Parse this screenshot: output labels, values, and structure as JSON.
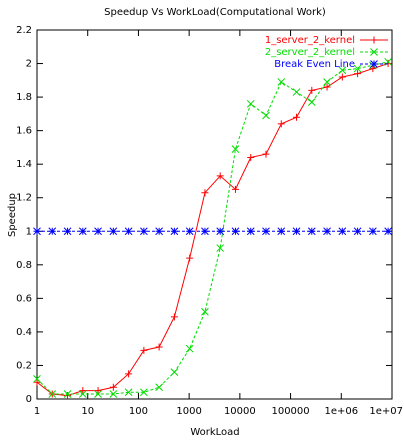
{
  "chart_data": {
    "type": "line",
    "title": "Speedup Vs WorkLoad(Computational Work)",
    "xlabel": "WorkLoad",
    "ylabel": "Speedup",
    "xscale": "log",
    "x": [
      1,
      2,
      4,
      8,
      16,
      32,
      64,
      128,
      256,
      512,
      1024,
      2048,
      4096,
      8192,
      16384,
      32768,
      65536,
      131072,
      262144,
      524288,
      1048576,
      2097152,
      4194304,
      8388608
    ],
    "series": [
      {
        "name": "1_server_2_kernel",
        "color": "#ff0000",
        "marker": "plus",
        "values": [
          0.1,
          0.03,
          0.02,
          0.05,
          0.05,
          0.07,
          0.15,
          0.29,
          0.31,
          0.49,
          0.84,
          1.23,
          1.33,
          1.25,
          1.44,
          1.46,
          1.64,
          1.68,
          1.84,
          1.86,
          1.92,
          1.94,
          1.97,
          2.0
        ]
      },
      {
        "name": "2_server_2_kernel",
        "color": "#00dd00",
        "marker": "cross",
        "dashed": true,
        "values": [
          0.12,
          0.03,
          0.03,
          0.03,
          0.03,
          0.03,
          0.04,
          0.04,
          0.07,
          0.16,
          0.3,
          0.52,
          0.9,
          1.49,
          1.76,
          1.69,
          1.89,
          1.83,
          1.77,
          1.89,
          1.96,
          1.97,
          1.99,
          2.01
        ]
      },
      {
        "name": "Break Even Line",
        "color": "#0000ff",
        "marker": "star",
        "dashed": true,
        "values": [
          1,
          1,
          1,
          1,
          1,
          1,
          1,
          1,
          1,
          1,
          1,
          1,
          1,
          1,
          1,
          1,
          1,
          1,
          1,
          1,
          1,
          1,
          1,
          1
        ]
      }
    ],
    "xlim": [
      1,
      10000000
    ],
    "xticks": [
      1,
      10,
      100,
      1000,
      10000,
      100000,
      {
        "value": 1000000,
        "label": "1e+06"
      },
      {
        "value": 10000000,
        "label": "1e+07"
      }
    ],
    "ylim": [
      0,
      2.2
    ],
    "yticks": [
      0,
      0.2,
      0.4,
      0.6,
      0.8,
      1,
      1.2,
      1.4,
      1.6,
      1.8,
      2,
      2.2
    ],
    "legend": "top-right"
  }
}
